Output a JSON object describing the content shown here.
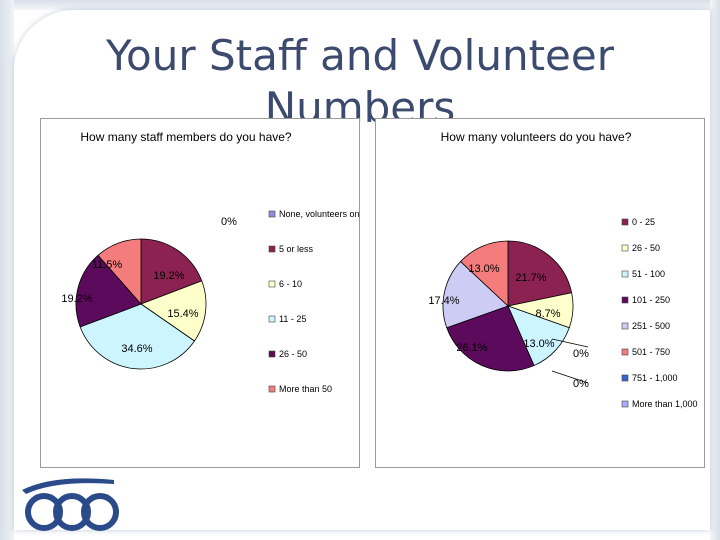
{
  "slide": {
    "title": "Your Staff and Volunteer Numbers"
  },
  "colors": {
    "title": "#3b4a6e",
    "frame": "#d8dfe8"
  },
  "chart_data": [
    {
      "type": "pie",
      "title": "How many staff members do you have?",
      "legend_position": "right",
      "categories": [
        "None, volunteers only",
        "5 or less",
        "6 - 10",
        "11 - 25",
        "26 - 50",
        "More than 50"
      ],
      "values": [
        0,
        19.2,
        15.4,
        34.6,
        19.2,
        11.5
      ],
      "labels": [
        "0%",
        "19.2%",
        "15.4%",
        "34.6%",
        "19.2%",
        "11.5%"
      ],
      "colors": [
        "#8e8ee0",
        "#8b2252",
        "#ffffcc",
        "#ccf5ff",
        "#5c0a5c",
        "#f47c7c"
      ]
    },
    {
      "type": "pie",
      "title": "How many volunteers do you have?",
      "legend_position": "right",
      "categories": [
        "0 - 25",
        "26 - 50",
        "51 - 100",
        "101 - 250",
        "251 - 500",
        "501 - 750",
        "751 - 1,000",
        "More than 1,000"
      ],
      "values": [
        21.7,
        8.7,
        13.0,
        26.1,
        17.4,
        13.0,
        0,
        0
      ],
      "labels": [
        "21.7%",
        "8.7%",
        "13.0%",
        "26.1%",
        "17.4%",
        "13.0%",
        "0%",
        "0%"
      ],
      "colors": [
        "#8b2252",
        "#ffffcc",
        "#ccf5ff",
        "#5c0a5c",
        "#ccccf5",
        "#f47c7c",
        "#3366cc",
        "#aaaaff"
      ]
    }
  ]
}
